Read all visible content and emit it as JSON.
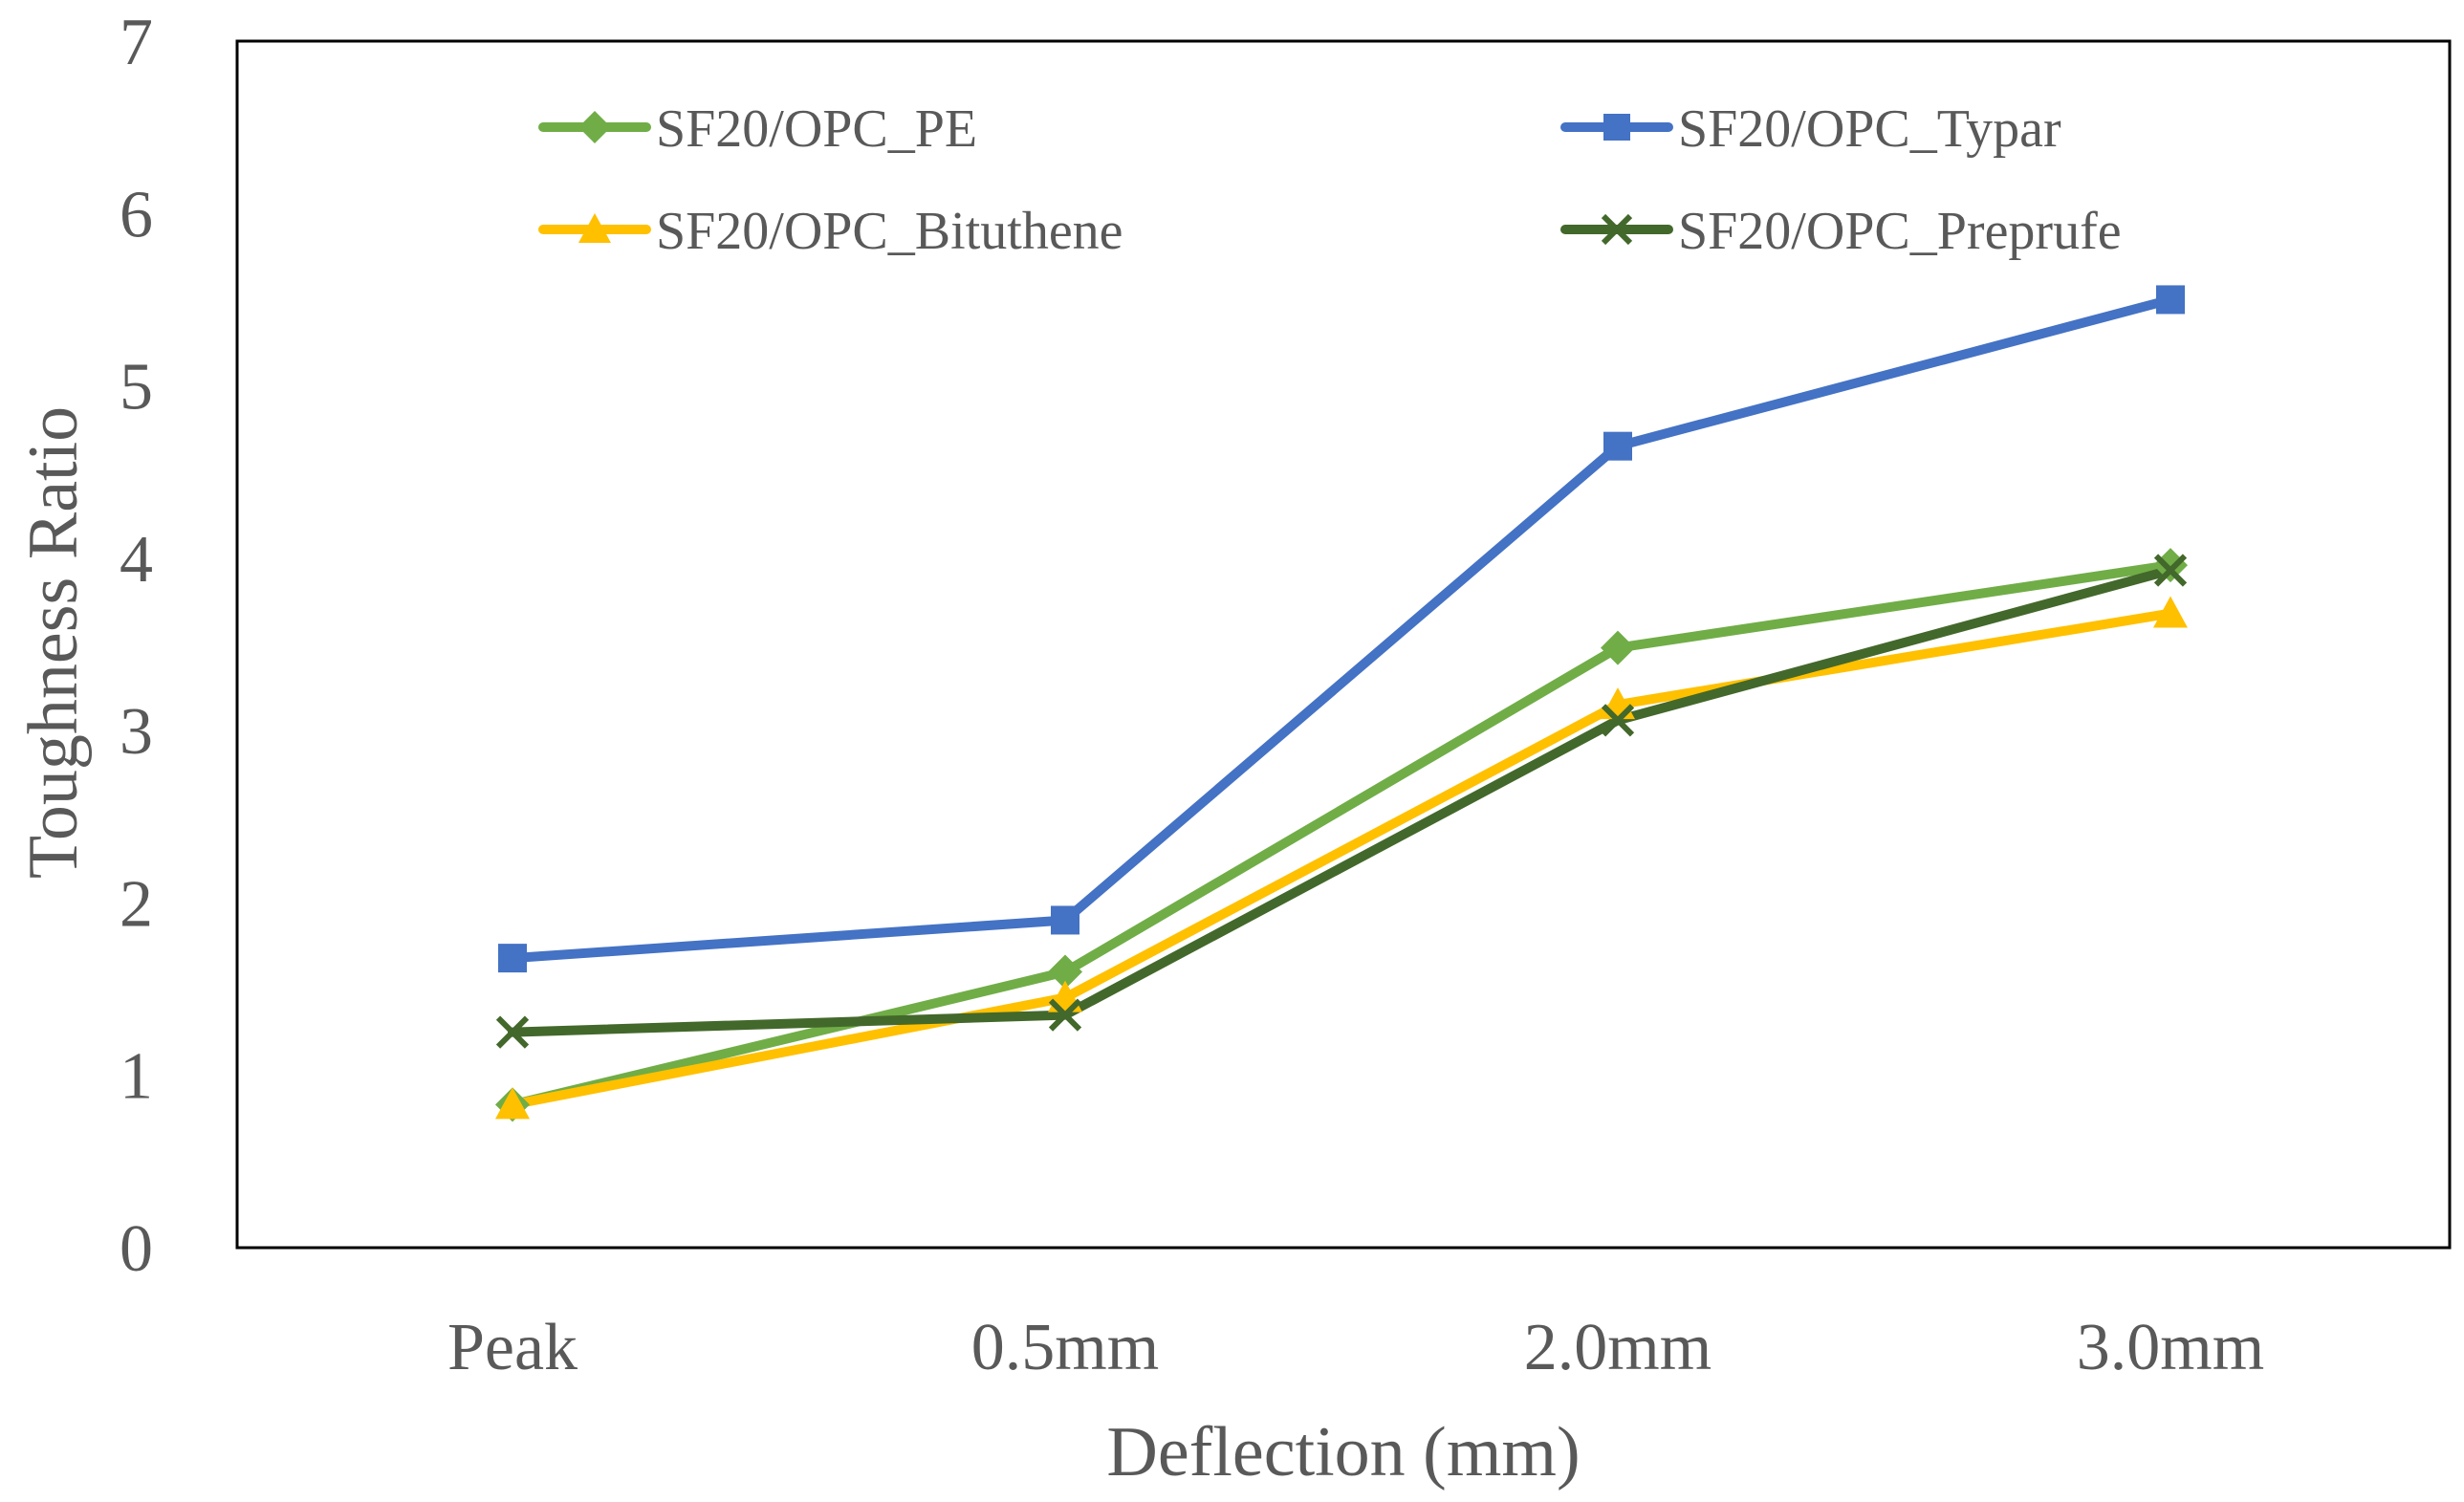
{
  "chart_data": {
    "type": "line",
    "title": "",
    "xlabel": "Deflection (mm)",
    "ylabel": "Toughness Ratio",
    "categories": [
      "Peak",
      "0.5mm",
      "2.0mm",
      "3.0mm"
    ],
    "ylim": [
      0,
      7
    ],
    "yticks": [
      0,
      1,
      2,
      3,
      4,
      5,
      6,
      7
    ],
    "ytick_labels": [
      "0",
      "1",
      "2",
      "3",
      "4",
      "5",
      "6",
      "7"
    ],
    "grid": false,
    "legend_position": "top",
    "series": [
      {
        "name": "SF20/OPC_PE",
        "marker": "diamond",
        "color": "#70AD47",
        "values": [
          0.83,
          1.6,
          3.48,
          3.96
        ]
      },
      {
        "name": "SF20/OPC_Typar",
        "marker": "square",
        "color": "#4472C4",
        "values": [
          1.68,
          1.9,
          4.65,
          5.5
        ]
      },
      {
        "name": "SF20/OPC_Bituthene",
        "marker": "triangle",
        "color": "#FFC000",
        "values": [
          0.83,
          1.45,
          3.15,
          3.68
        ]
      },
      {
        "name": "SF20/OPC_Preprufe",
        "marker": "x",
        "color": "#43682B",
        "values": [
          1.25,
          1.35,
          3.06,
          3.93
        ]
      }
    ]
  }
}
